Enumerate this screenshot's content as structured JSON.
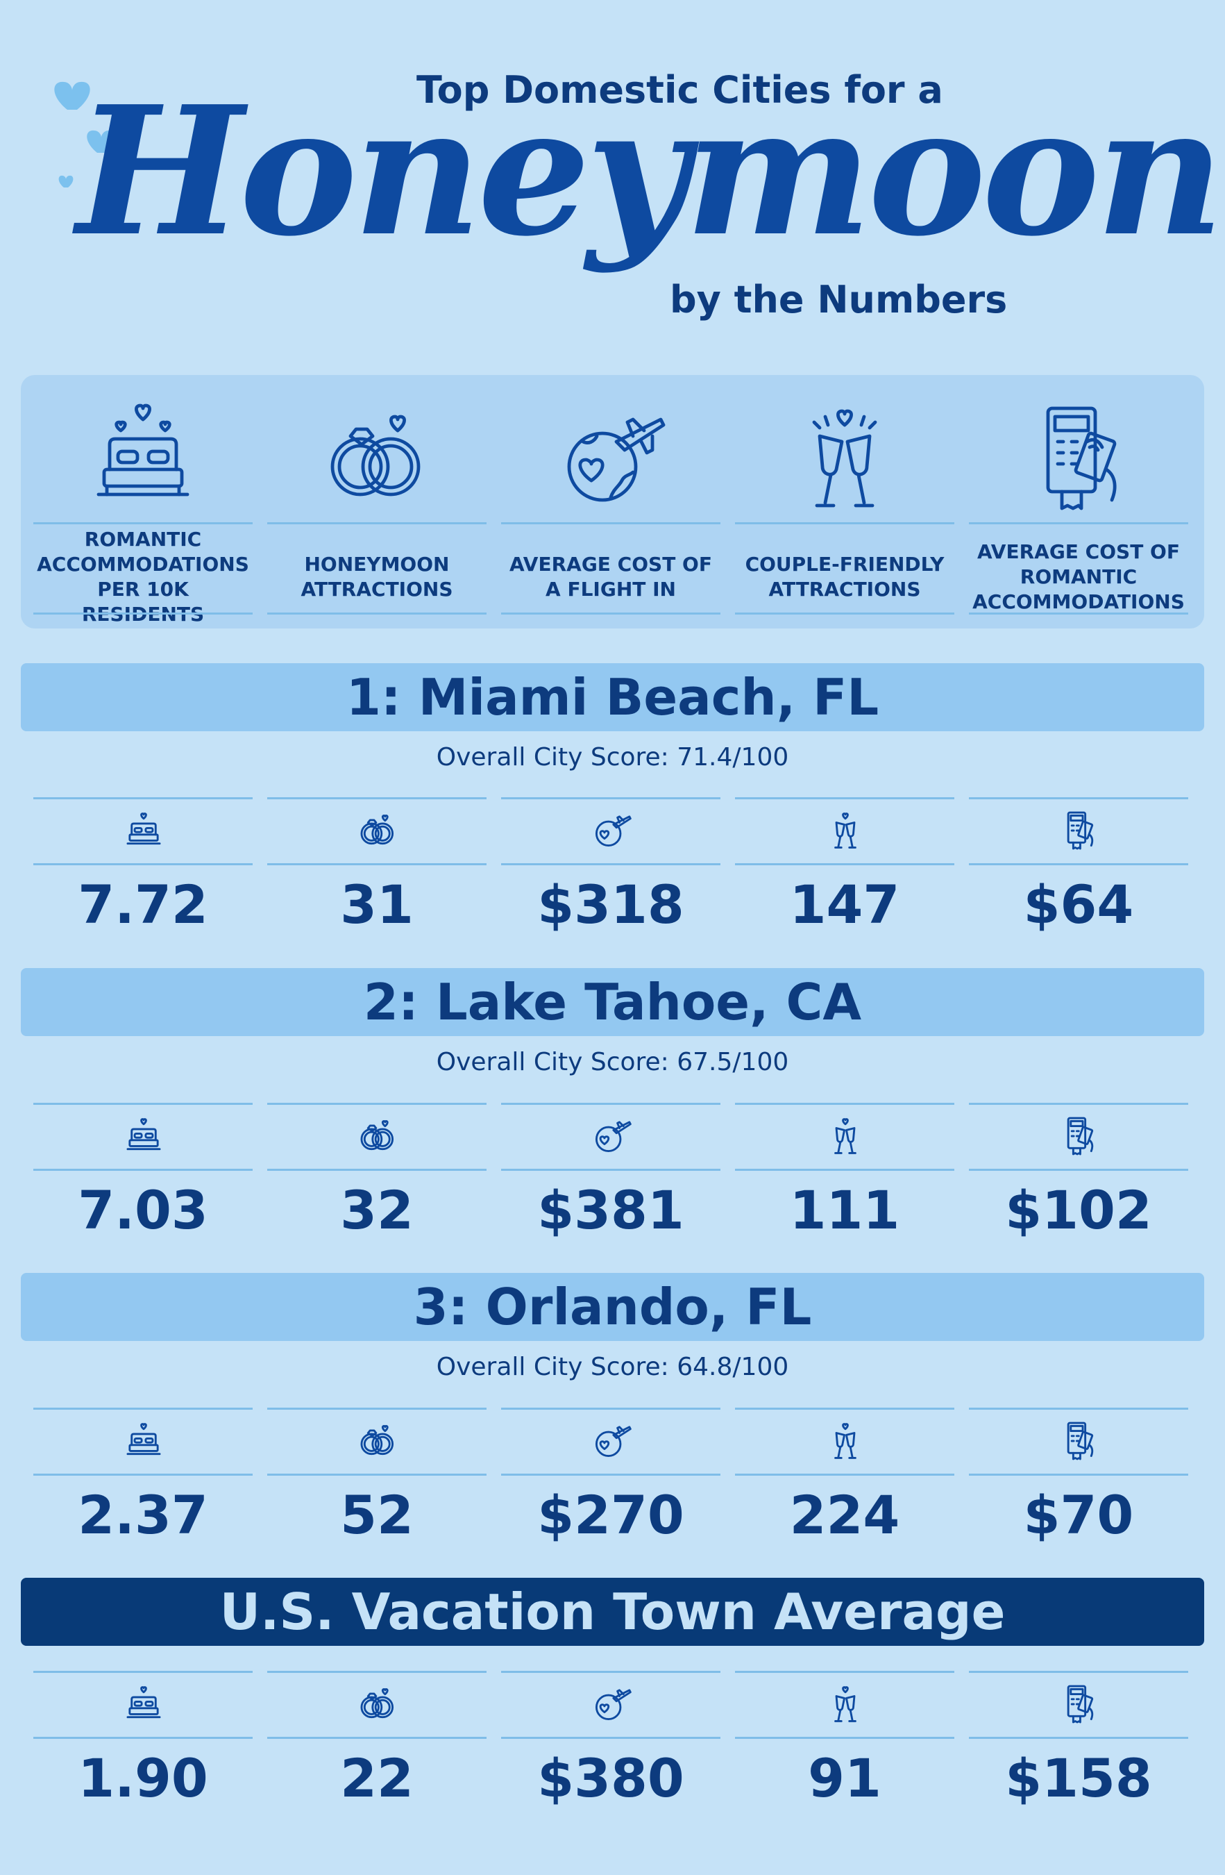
{
  "header": {
    "top_line": "Top Domestic Cities for a",
    "script_word": "Honeymoon",
    "sub_line": "by the Numbers"
  },
  "legend": [
    {
      "icon": "bed-hearts-icon",
      "label": "ROMANTIC\nACCOMMODATIONS\nPER 10K RESIDENTS"
    },
    {
      "icon": "rings-icon",
      "label": "HONEYMOON\nATTRACTIONS"
    },
    {
      "icon": "globe-plane-icon",
      "label": "AVERAGE COST OF\nA FLIGHT IN"
    },
    {
      "icon": "champagne-toast-icon",
      "label": "COUPLE-FRIENDLY\nATTRACTIONS"
    },
    {
      "icon": "card-payment-icon",
      "label": "AVERAGE COST OF\nROMANTIC\nACCOMMODATIONS"
    }
  ],
  "cities": [
    {
      "title": "1: Miami Beach, FL",
      "score": "Overall City Score: 71.4/100",
      "values": [
        "7.72",
        "31",
        "$318",
        "147",
        "$64"
      ]
    },
    {
      "title": "2: Lake Tahoe, CA",
      "score": "Overall City Score: 67.5/100",
      "values": [
        "7.03",
        "32",
        "$381",
        "111",
        "$102"
      ]
    },
    {
      "title": "3: Orlando, FL",
      "score": "Overall City Score: 64.8/100",
      "values": [
        "2.37",
        "52",
        "$270",
        "224",
        "$70"
      ]
    }
  ],
  "average": {
    "title": "U.S. Vacation Town Average",
    "values": [
      "1.90",
      "22",
      "$380",
      "91",
      "$158"
    ]
  },
  "colors": {
    "background": "#c5e2f7",
    "panel": "#aed4f3",
    "section_bar": "#93c8f1",
    "average_bar": "#083a77",
    "text": "#0d3b7e",
    "heart": "#7cc1ee"
  }
}
